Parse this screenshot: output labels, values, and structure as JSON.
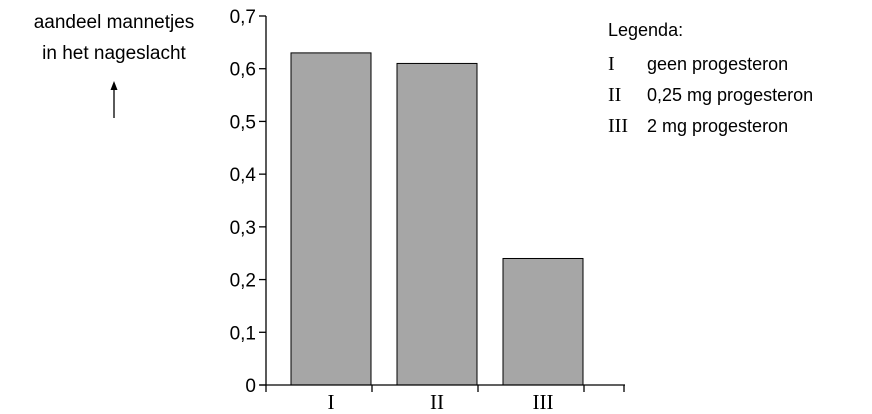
{
  "chart_data": {
    "type": "bar",
    "categories": [
      "I",
      "II",
      "III"
    ],
    "values": [
      0.63,
      0.61,
      0.24
    ],
    "ylabel": [
      "aandeel mannetjes",
      "in het nageslacht"
    ],
    "ylim": [
      0,
      0.7
    ],
    "yticks": [
      "0",
      "0,1",
      "0,2",
      "0,3",
      "0,4",
      "0,5",
      "0,6",
      "0,7"
    ],
    "grid": false,
    "bar_color": "#a6a6a6",
    "legend": {
      "title": "Legenda:",
      "entries": [
        {
          "key": "I",
          "label": "geen progesteron"
        },
        {
          "key": "II",
          "label": "0,25 mg progesteron"
        },
        {
          "key": "III",
          "label": "2 mg progesteron"
        }
      ]
    }
  }
}
